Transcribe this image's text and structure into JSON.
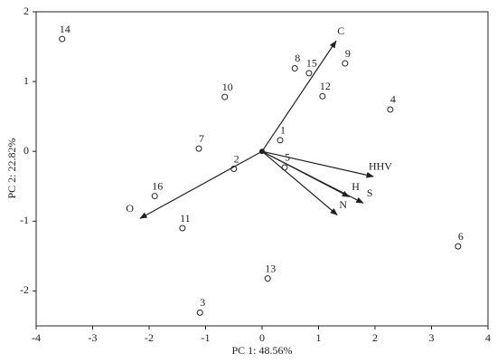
{
  "chart_data": {
    "type": "biplot",
    "xlabel": "PC 1: 48.56%",
    "ylabel": "PC 2: 22.82%",
    "xlim": [
      -4,
      4
    ],
    "xticks": [
      -4,
      -3,
      -2,
      -1,
      0,
      1,
      2,
      3,
      4
    ],
    "ylim": [
      -2.5,
      2
    ],
    "yticks": [
      -2,
      -1,
      0,
      1,
      2
    ],
    "points": {
      "labels": [
        "14",
        "8",
        "15",
        "9",
        "12",
        "10",
        "4",
        "1",
        "7",
        "2",
        "5",
        "16",
        "11",
        "6",
        "13",
        "3"
      ],
      "x": [
        -3.54,
        0.58,
        0.83,
        1.47,
        1.07,
        -0.66,
        2.27,
        0.32,
        -1.12,
        -0.5,
        0.4,
        -1.9,
        -1.41,
        3.47,
        0.1,
        -1.1
      ],
      "y": [
        1.61,
        1.19,
        1.12,
        1.26,
        0.79,
        0.78,
        0.6,
        0.16,
        0.04,
        -0.25,
        -0.23,
        -0.64,
        -1.1,
        -1.36,
        -1.82,
        -2.31
      ]
    },
    "loadings": {
      "labels": [
        "C",
        "HHV",
        "H",
        "S",
        "N",
        "O"
      ],
      "x": [
        1.31,
        1.97,
        1.54,
        1.79,
        1.33,
        -2.16
      ],
      "y": [
        1.58,
        -0.36,
        -0.65,
        -0.74,
        -0.91,
        -0.96
      ]
    }
  }
}
